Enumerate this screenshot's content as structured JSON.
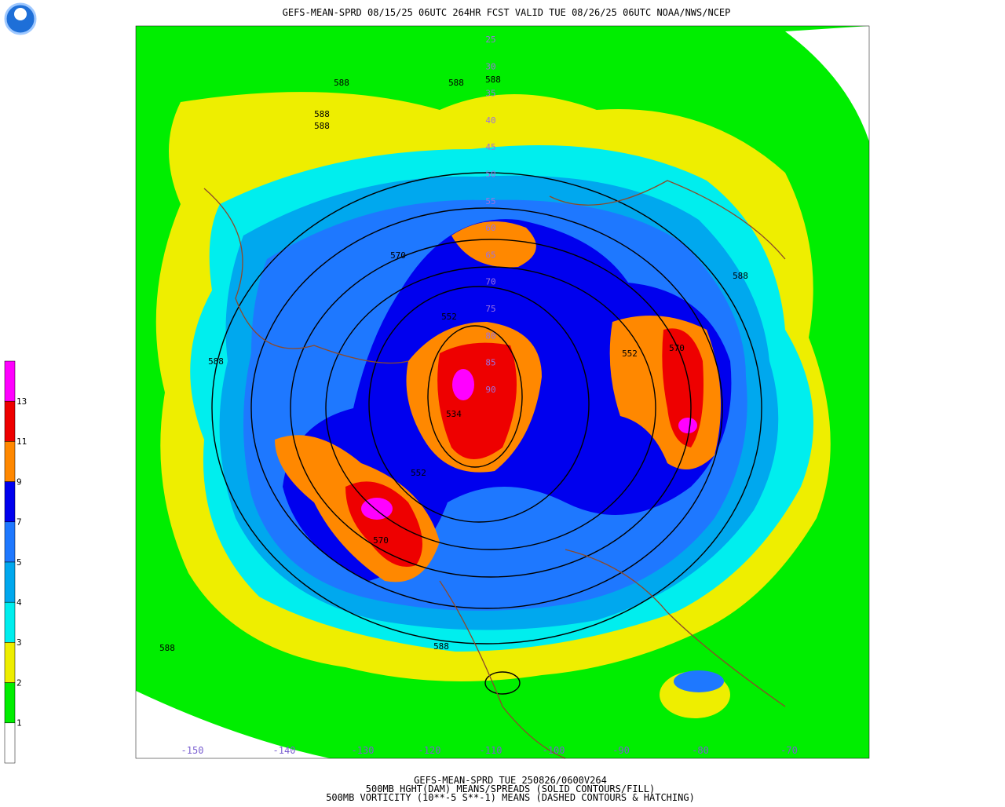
{
  "header": {
    "title": "GEFS-MEAN-SPRD 08/15/25 06UTC 264HR FCST VALID TUE 08/26/25 06UTC NOAA/NWS/NCEP"
  },
  "footer": {
    "lines": [
      "GEFS-MEAN-SPRD TUE 250826/0600V264",
      "500MB HGHT(DAM) MEANS/SPREADS (SOLID CONTOURS/FILL)",
      "500MB VORTICITY (10**-5 S**-1) MEANS (DASHED CONTOURS & HATCHING)"
    ]
  },
  "colorbar": {
    "labels": [
      "13",
      "11",
      "9",
      "7",
      "5",
      "4",
      "3",
      "2",
      "1"
    ],
    "colors": [
      "#ff00ff",
      "#ee0000",
      "#ff8800",
      "#0000ee",
      "#1e78ff",
      "#00a8ee",
      "#00eeee",
      "#eeee00",
      "#00ee00",
      "#ffffff"
    ]
  },
  "map": {
    "latitude_labels": [
      "25",
      "30",
      "35",
      "40",
      "45",
      "50",
      "55",
      "60",
      "65",
      "70",
      "75",
      "80",
      "85",
      "90"
    ],
    "longitude_labels": [
      "-150",
      "-140",
      "-130",
      "-120",
      "-110",
      "-100",
      "-90",
      "-80",
      "-70"
    ],
    "contour_labels": [
      "588",
      "588",
      "588",
      "588",
      "588",
      "588",
      "588",
      "588",
      "588",
      "570",
      "570",
      "570",
      "552",
      "552",
      "552",
      "534"
    ]
  }
}
